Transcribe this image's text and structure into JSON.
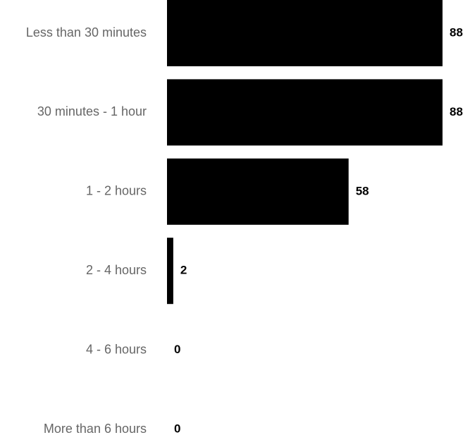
{
  "chart_data": {
    "type": "bar",
    "orientation": "horizontal",
    "categories": [
      "Less than 30 minutes",
      "30 minutes - 1 hour",
      "1 - 2 hours",
      "2 - 4 hours",
      "4 - 6 hours",
      "More than 6 hours"
    ],
    "values": [
      88,
      88,
      58,
      2,
      0,
      0
    ],
    "value_labels": [
      "88",
      "88",
      "58",
      "2",
      "0",
      "0"
    ],
    "xlim": [
      0,
      88
    ],
    "grid": false,
    "bar_color": "#000000",
    "label_color": "#666666",
    "value_label_color": "#000000"
  }
}
